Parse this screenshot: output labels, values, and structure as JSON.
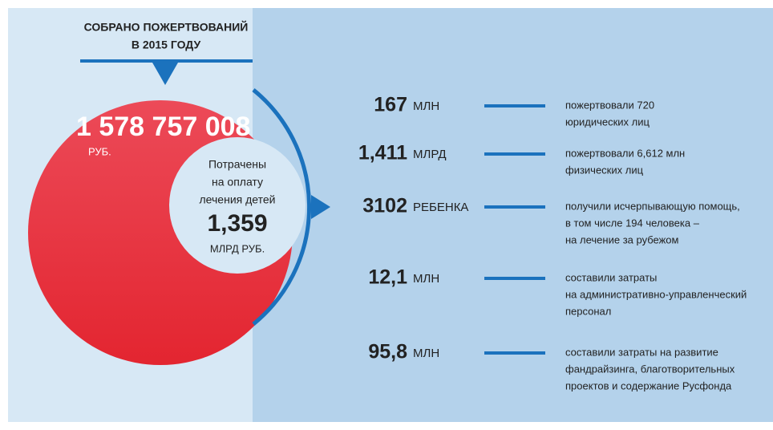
{
  "header": {
    "title": [
      "СОБРАНО ПОЖЕРТВОВАНИЙ",
      "В 2015 ГОДУ"
    ]
  },
  "total": {
    "amount": "1 578 757 008",
    "unit": "РУБ."
  },
  "spent": {
    "lines": [
      "Потрачены",
      "на оплату",
      "лечения детей"
    ],
    "amount": "1,359",
    "unit": "МЛРД РУБ."
  },
  "rows": [
    {
      "number": "167",
      "unit": "МЛН",
      "description": [
        "пожертвовали 720",
        "юридических лиц"
      ]
    },
    {
      "number": "1,411",
      "unit": "МЛРД",
      "description": [
        "пожертвовали 6,612 млн",
        "физических лиц"
      ]
    },
    {
      "number": "3102",
      "unit": "РЕБЕНКА",
      "description": [
        "получили исчерпывающую помощь,",
        "в том числе 194 человека –",
        "на лечение за рубежом"
      ]
    },
    {
      "number": "12,1",
      "unit": "МЛН",
      "description": [
        "составили затраты",
        "на административно-управленческий",
        "персонал"
      ]
    },
    {
      "number": "95,8",
      "unit": "МЛН",
      "description": [
        "составили затраты на развитие",
        "фандрайзинга, благотворительных",
        "проектов и содержание Русфонда"
      ]
    }
  ]
}
